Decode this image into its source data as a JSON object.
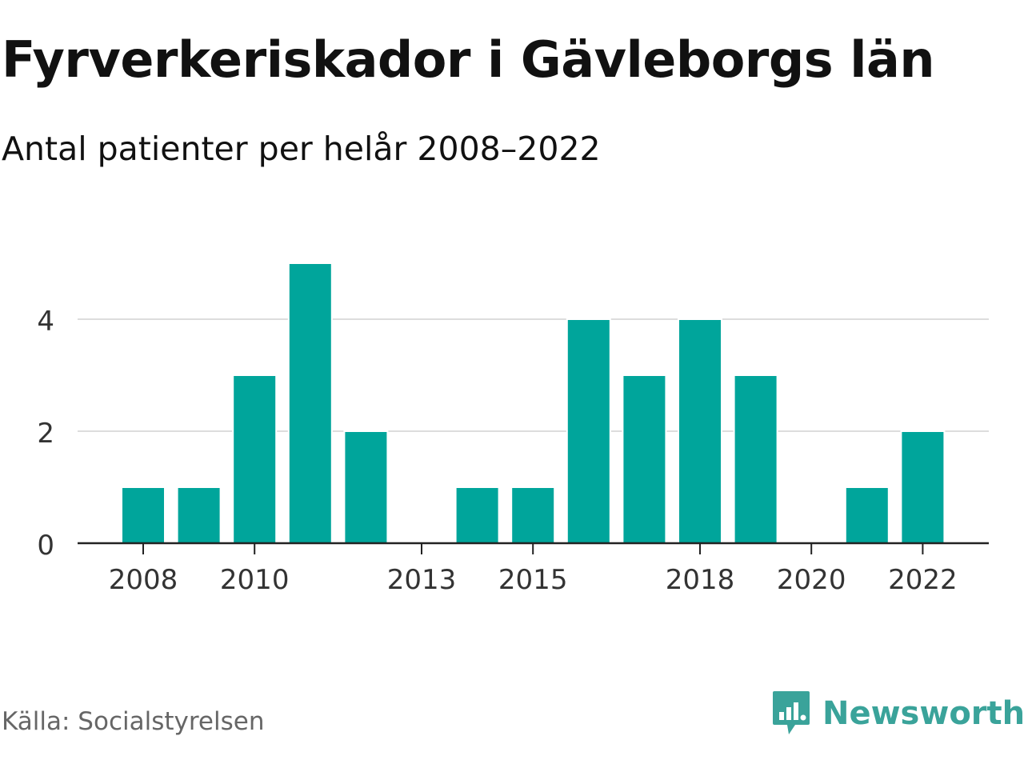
{
  "header": {
    "title": "Fyrverkeriskador i Gävleborgs län",
    "subtitle": "Antal patienter per helår 2008–2022"
  },
  "footer": {
    "source": "Källa: Socialstyrelsen",
    "brand": "Newsworthy",
    "brand_icon": "bar-chart-speech-bubble-icon"
  },
  "colors": {
    "bar": "#00a59b",
    "grid": "#dddddd",
    "axis": "#222222",
    "brand": "#3aa39a"
  },
  "chart_data": {
    "type": "bar",
    "title": "Fyrverkeriskador i Gävleborgs län",
    "subtitle": "Antal patienter per helår 2008–2022",
    "categories": [
      "2008",
      "2009",
      "2010",
      "2011",
      "2012",
      "2013",
      "2014",
      "2015",
      "2016",
      "2017",
      "2018",
      "2019",
      "2020",
      "2021",
      "2022"
    ],
    "values": [
      1,
      1,
      3,
      5,
      2,
      0,
      1,
      1,
      4,
      3,
      4,
      3,
      0,
      1,
      2
    ],
    "x_tick_labels": [
      "2008",
      "2010",
      "2013",
      "2015",
      "2018",
      "2020",
      "2022"
    ],
    "y_ticks": [
      0,
      2,
      4
    ],
    "ylim": [
      0,
      5
    ],
    "xlabel": "",
    "ylabel": "",
    "grid": true
  }
}
